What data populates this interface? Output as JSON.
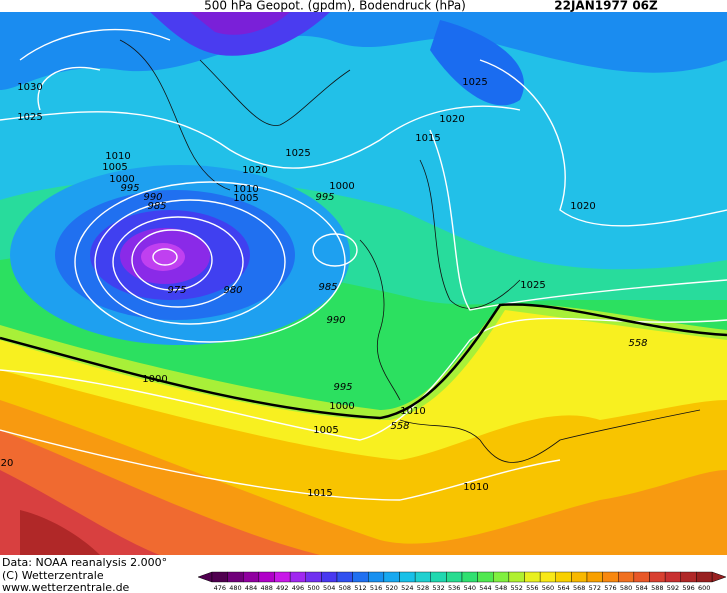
{
  "header": {
    "title": "500 hPa Geopot. (gpdm), Bodendruck (hPa)",
    "date": "22JAN1977 06Z"
  },
  "isobar_labels": [
    "1030",
    "1025",
    "1010",
    "1005",
    "1000",
    "995",
    "990",
    "985",
    "1020",
    "1025",
    "1010",
    "1005",
    "1000",
    "995",
    "975",
    "980",
    "985",
    "990",
    "995",
    "1000",
    "1005",
    "1010",
    "1015",
    "1020",
    "1025",
    "1020",
    "1025",
    "1000",
    "558",
    "558",
    "20",
    "1015",
    "1010"
  ],
  "footer": {
    "source": "Data: NOAA reanalysis 2.000°",
    "copyright": "(C) Wetterzentrale",
    "url": "www.wetterzentrale.de"
  },
  "colorbar": {
    "labels": [
      476,
      480,
      484,
      488,
      492,
      496,
      500,
      504,
      508,
      512,
      516,
      520,
      524,
      528,
      532,
      536,
      540,
      544,
      548,
      552,
      556,
      560,
      564,
      568,
      572,
      576,
      580,
      584,
      588,
      592,
      596,
      600
    ],
    "colors": [
      "#500050",
      "#70007a",
      "#9000a0",
      "#b000c8",
      "#c818e8",
      "#a028f0",
      "#7030f0",
      "#4838f0",
      "#3050f0",
      "#2070f0",
      "#1890f0",
      "#18a8f0",
      "#18c0e8",
      "#20d0d0",
      "#20d8b0",
      "#28dc90",
      "#30e070",
      "#50e850",
      "#80f040",
      "#b0f030",
      "#e8f020",
      "#f8e818",
      "#f8d000",
      "#f8b800",
      "#f8a000",
      "#f88810",
      "#f07020",
      "#e85828",
      "#d84030",
      "#c83030",
      "#b02828",
      "#982020"
    ]
  }
}
